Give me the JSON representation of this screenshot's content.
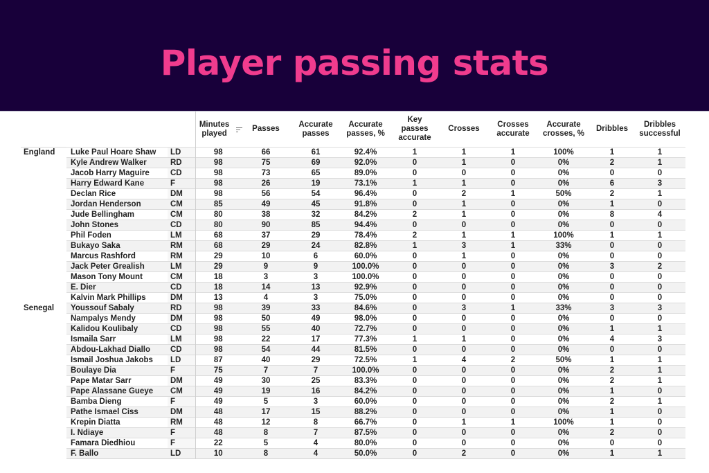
{
  "title": "Player passing stats",
  "colors": {
    "banner_bg": "#18003a",
    "title": "#f03c8e",
    "row_stripe": "#f2f2f2"
  },
  "columns": [
    {
      "key": "minutes",
      "label": "Minutes played",
      "sort_icon": "sort-descending-icon"
    },
    {
      "key": "passes",
      "label": "Passes"
    },
    {
      "key": "accurate_passes",
      "label": "Accurate passes"
    },
    {
      "key": "accurate_passes_pct",
      "label": "Accurate passes, %"
    },
    {
      "key": "key_passes_accurate",
      "label": "Key passes accurate"
    },
    {
      "key": "crosses",
      "label": "Crosses"
    },
    {
      "key": "crosses_accurate",
      "label": "Crosses accurate"
    },
    {
      "key": "accurate_crosses_pct",
      "label": "Accurate crosses, %"
    },
    {
      "key": "dribbles",
      "label": "Dribbles"
    },
    {
      "key": "dribbles_successful",
      "label": "Dribbles successful"
    }
  ],
  "rows": [
    {
      "team": "England",
      "name": "Luke Paul Hoare Shaw",
      "pos": "LD",
      "stats": [
        "98",
        "66",
        "61",
        "92.4%",
        "1",
        "1",
        "1",
        "100%",
        "1",
        "1"
      ]
    },
    {
      "team": "",
      "name": "Kyle Andrew Walker",
      "pos": "RD",
      "stats": [
        "98",
        "75",
        "69",
        "92.0%",
        "0",
        "1",
        "0",
        "0%",
        "2",
        "1"
      ]
    },
    {
      "team": "",
      "name": "Jacob Harry Maguire",
      "pos": "CD",
      "stats": [
        "98",
        "73",
        "65",
        "89.0%",
        "0",
        "0",
        "0",
        "0%",
        "0",
        "0"
      ]
    },
    {
      "team": "",
      "name": "Harry Edward Kane",
      "pos": "F",
      "stats": [
        "98",
        "26",
        "19",
        "73.1%",
        "1",
        "1",
        "0",
        "0%",
        "6",
        "3"
      ]
    },
    {
      "team": "",
      "name": "Declan Rice",
      "pos": "DM",
      "stats": [
        "98",
        "56",
        "54",
        "96.4%",
        "0",
        "2",
        "1",
        "50%",
        "2",
        "1"
      ]
    },
    {
      "team": "",
      "name": "Jordan Henderson",
      "pos": "CM",
      "stats": [
        "85",
        "49",
        "45",
        "91.8%",
        "0",
        "1",
        "0",
        "0%",
        "1",
        "0"
      ]
    },
    {
      "team": "",
      "name": "Jude Bellingham",
      "pos": "CM",
      "stats": [
        "80",
        "38",
        "32",
        "84.2%",
        "2",
        "1",
        "0",
        "0%",
        "8",
        "4"
      ]
    },
    {
      "team": "",
      "name": "John Stones",
      "pos": "CD",
      "stats": [
        "80",
        "90",
        "85",
        "94.4%",
        "0",
        "0",
        "0",
        "0%",
        "0",
        "0"
      ]
    },
    {
      "team": "",
      "name": "Phil Foden",
      "pos": "LM",
      "stats": [
        "68",
        "37",
        "29",
        "78.4%",
        "2",
        "1",
        "1",
        "100%",
        "1",
        "1"
      ]
    },
    {
      "team": "",
      "name": "Bukayo Saka",
      "pos": "RM",
      "stats": [
        "68",
        "29",
        "24",
        "82.8%",
        "1",
        "3",
        "1",
        "33%",
        "0",
        "0"
      ]
    },
    {
      "team": "",
      "name": "Marcus Rashford",
      "pos": "RM",
      "stats": [
        "29",
        "10",
        "6",
        "60.0%",
        "0",
        "1",
        "0",
        "0%",
        "0",
        "0"
      ]
    },
    {
      "team": "",
      "name": "Jack Peter Grealish",
      "pos": "LM",
      "stats": [
        "29",
        "9",
        "9",
        "100.0%",
        "0",
        "0",
        "0",
        "0%",
        "3",
        "2"
      ]
    },
    {
      "team": "",
      "name": "Mason Tony Mount",
      "pos": "CM",
      "stats": [
        "18",
        "3",
        "3",
        "100.0%",
        "0",
        "0",
        "0",
        "0%",
        "0",
        "0"
      ]
    },
    {
      "team": "",
      "name": "E. Dier",
      "pos": "CD",
      "stats": [
        "18",
        "14",
        "13",
        "92.9%",
        "0",
        "0",
        "0",
        "0%",
        "0",
        "0"
      ]
    },
    {
      "team": "",
      "name": "Kalvin Mark Phillips",
      "pos": "DM",
      "stats": [
        "13",
        "4",
        "3",
        "75.0%",
        "0",
        "0",
        "0",
        "0%",
        "0",
        "0"
      ]
    },
    {
      "team": "Senegal",
      "name": "Youssouf Sabaly",
      "pos": "RD",
      "stats": [
        "98",
        "39",
        "33",
        "84.6%",
        "0",
        "3",
        "1",
        "33%",
        "3",
        "3"
      ]
    },
    {
      "team": "",
      "name": "Nampalys Mendy",
      "pos": "DM",
      "stats": [
        "98",
        "50",
        "49",
        "98.0%",
        "0",
        "0",
        "0",
        "0%",
        "0",
        "0"
      ]
    },
    {
      "team": "",
      "name": "Kalidou Koulibaly",
      "pos": "CD",
      "stats": [
        "98",
        "55",
        "40",
        "72.7%",
        "0",
        "0",
        "0",
        "0%",
        "1",
        "1"
      ]
    },
    {
      "team": "",
      "name": "Ismaila Sarr",
      "pos": "LM",
      "stats": [
        "98",
        "22",
        "17",
        "77.3%",
        "1",
        "1",
        "0",
        "0%",
        "4",
        "3"
      ]
    },
    {
      "team": "",
      "name": "Abdou-Lakhad Diallo",
      "pos": "CD",
      "stats": [
        "98",
        "54",
        "44",
        "81.5%",
        "0",
        "0",
        "0",
        "0%",
        "0",
        "0"
      ]
    },
    {
      "team": "",
      "name": "Ismail Joshua Jakobs",
      "pos": "LD",
      "stats": [
        "87",
        "40",
        "29",
        "72.5%",
        "1",
        "4",
        "2",
        "50%",
        "1",
        "1"
      ]
    },
    {
      "team": "",
      "name": "Boulaye Dia",
      "pos": "F",
      "stats": [
        "75",
        "7",
        "7",
        "100.0%",
        "0",
        "0",
        "0",
        "0%",
        "2",
        "1"
      ]
    },
    {
      "team": "",
      "name": "Pape Matar Sarr",
      "pos": "DM",
      "stats": [
        "49",
        "30",
        "25",
        "83.3%",
        "0",
        "0",
        "0",
        "0%",
        "2",
        "1"
      ]
    },
    {
      "team": "",
      "name": "Pape Alassane Gueye",
      "pos": "CM",
      "stats": [
        "49",
        "19",
        "16",
        "84.2%",
        "0",
        "0",
        "0",
        "0%",
        "1",
        "0"
      ]
    },
    {
      "team": "",
      "name": "Bamba Dieng",
      "pos": "F",
      "stats": [
        "49",
        "5",
        "3",
        "60.0%",
        "0",
        "0",
        "0",
        "0%",
        "2",
        "1"
      ]
    },
    {
      "team": "",
      "name": "Pathe Ismael Ciss",
      "pos": "DM",
      "stats": [
        "48",
        "17",
        "15",
        "88.2%",
        "0",
        "0",
        "0",
        "0%",
        "1",
        "0"
      ]
    },
    {
      "team": "",
      "name": "Krepin Diatta",
      "pos": "RM",
      "stats": [
        "48",
        "12",
        "8",
        "66.7%",
        "0",
        "1",
        "1",
        "100%",
        "1",
        "0"
      ]
    },
    {
      "team": "",
      "name": "I. Ndiaye",
      "pos": "F",
      "stats": [
        "48",
        "8",
        "7",
        "87.5%",
        "0",
        "0",
        "0",
        "0%",
        "2",
        "0"
      ]
    },
    {
      "team": "",
      "name": "Famara Diedhiou",
      "pos": "F",
      "stats": [
        "22",
        "5",
        "4",
        "80.0%",
        "0",
        "0",
        "0",
        "0%",
        "0",
        "0"
      ]
    },
    {
      "team": "",
      "name": "F. Ballo",
      "pos": "LD",
      "stats": [
        "10",
        "8",
        "4",
        "50.0%",
        "0",
        "2",
        "0",
        "0%",
        "1",
        "1"
      ]
    }
  ]
}
